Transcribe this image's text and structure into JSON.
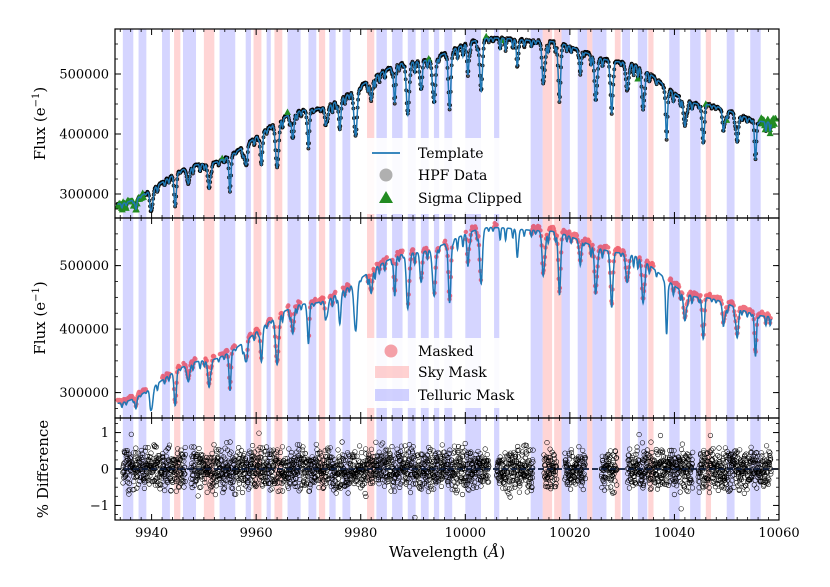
{
  "chart_data": [
    {
      "panel": "top",
      "type": "line",
      "ylabel": "Flux (e$^{-1}$)",
      "ylabel_text": "Flux (e",
      "ylabel_sup": "−1",
      "ylabel_close": ")",
      "xlim": [
        9933,
        10060
      ],
      "ylim": [
        260000,
        575000
      ],
      "yticks": [
        300000,
        400000,
        500000
      ],
      "ytick_labels": [
        "300000",
        "400000",
        "500000"
      ],
      "legend_position": "center",
      "legend": [
        {
          "label": "Template",
          "marker": "line",
          "color": "#1f77b4"
        },
        {
          "label": "HPF Data",
          "marker": "circle",
          "color": "#b0b0b0"
        },
        {
          "label": "Sigma Clipped",
          "marker": "triangle",
          "color": "#228B22"
        }
      ],
      "series": [
        {
          "name": "Template",
          "color": "#1f77b4"
        },
        {
          "name": "HPF Data",
          "color": "#000000"
        },
        {
          "name": "Sigma Clipped",
          "color": "#228B22"
        }
      ],
      "continuum": {
        "x": [
          9933,
          9950,
          9970,
          9990,
          10005,
          10015,
          10030,
          10045,
          10058
        ],
        "y": [
          283000,
          350000,
          440000,
          520000,
          560000,
          555000,
          520000,
          450000,
          420000
        ]
      },
      "absorption_lines": [
        9937,
        9940,
        9944.5,
        9947,
        9951,
        9955,
        9958,
        9961,
        9964,
        9967,
        9970,
        9973.5,
        9976,
        9979,
        9982,
        9986.5,
        9989,
        9991.5,
        9994,
        9997,
        10000.5,
        10003,
        10010,
        10015,
        10018,
        10022,
        10025,
        10028,
        10031,
        10034,
        10038.5,
        10042,
        10045.5,
        10049.5,
        10052,
        10055.5
      ]
    },
    {
      "panel": "middle",
      "type": "line",
      "ylabel_text": "Flux (e",
      "ylabel_sup": "−1",
      "ylabel_close": ")",
      "xlim": [
        9933,
        10060
      ],
      "ylim": [
        260000,
        575000
      ],
      "yticks": [
        300000,
        400000,
        500000
      ],
      "ytick_labels": [
        "300000",
        "400000",
        "500000"
      ],
      "legend_position": "lower-center",
      "legend": [
        {
          "label": "Masked",
          "marker": "circle",
          "color": "#f4a0a8"
        },
        {
          "label": "Sky Mask",
          "marker": "patch",
          "color": "#ffb3b3"
        },
        {
          "label": "Telluric Mask",
          "marker": "patch",
          "color": "#b3b3ff"
        }
      ],
      "series": [
        {
          "name": "Template",
          "color": "#1f77b4"
        },
        {
          "name": "Masked",
          "color": "#e8283c"
        }
      ]
    },
    {
      "panel": "bottom",
      "type": "scatter",
      "ylabel_text": "% Difference",
      "xlabel_text": "Wavelength (",
      "xlabel_unit": "Å",
      "xlabel_close": ")",
      "xlim": [
        9933,
        10060
      ],
      "ylim": [
        -1.4,
        1.4
      ],
      "yticks": [
        -1,
        0,
        1
      ],
      "ytick_labels": [
        "−1",
        "0",
        "1"
      ],
      "xticks": [
        9940,
        9960,
        9980,
        10000,
        10020,
        10040,
        10060
      ],
      "xtick_labels": [
        "9940",
        "9960",
        "9980",
        "10000",
        "10020",
        "10040",
        "10060"
      ],
      "data_gaps": [
        [
          9946.5,
          9947.5
        ],
        [
          10004.5,
          10006
        ],
        [
          10013,
          10015
        ],
        [
          10017.5,
          10019
        ],
        [
          10023,
          10026
        ],
        [
          10029,
          10031
        ],
        [
          10043.5,
          10044.5
        ]
      ]
    }
  ],
  "masks": {
    "sky": [
      [
        9944.3,
        9945.5
      ],
      [
        9950,
        9952
      ],
      [
        9959.5,
        9961
      ],
      [
        9963.5,
        9965
      ],
      [
        9972,
        9973.2
      ],
      [
        9981.2,
        9982.6
      ],
      [
        10014.8,
        10016.6
      ],
      [
        10017,
        10018.4
      ],
      [
        10023.3,
        10024.3
      ],
      [
        10028.6,
        10029.7
      ],
      [
        10035,
        10036
      ],
      [
        10046,
        10047
      ]
    ],
    "telluric": [
      [
        9934.5,
        9936.5
      ],
      [
        9937.5,
        9939
      ],
      [
        9942,
        9943.5
      ],
      [
        9946,
        9948.5
      ],
      [
        9953,
        9956
      ],
      [
        9958,
        9959
      ],
      [
        9962,
        9962.8
      ],
      [
        9966,
        9968.5
      ],
      [
        9970,
        9971.5
      ],
      [
        9974,
        9975.2
      ],
      [
        9976.5,
        9978
      ],
      [
        9983,
        9985
      ],
      [
        9986,
        9988
      ],
      [
        9989,
        9990.5
      ],
      [
        9991.5,
        9993
      ],
      [
        9994,
        9995
      ],
      [
        9996,
        9997.5
      ],
      [
        10000,
        10003
      ],
      [
        10005.5,
        10006.5
      ],
      [
        10012.5,
        10014.8
      ],
      [
        10018.4,
        10020
      ],
      [
        10021.5,
        10023.3
      ],
      [
        10024.3,
        10027
      ],
      [
        10030,
        10031.5
      ],
      [
        10033,
        10034.8
      ],
      [
        10039,
        10041
      ],
      [
        10043,
        10045
      ],
      [
        10050,
        10051.5
      ],
      [
        10054.5,
        10056.5
      ]
    ]
  },
  "colors": {
    "template": "#1f77b4",
    "hpf": "#000000",
    "clipped": "#228B22",
    "masked": "#e8283c",
    "sky": "#ffb3b3",
    "telluric": "#b3b3ff"
  }
}
